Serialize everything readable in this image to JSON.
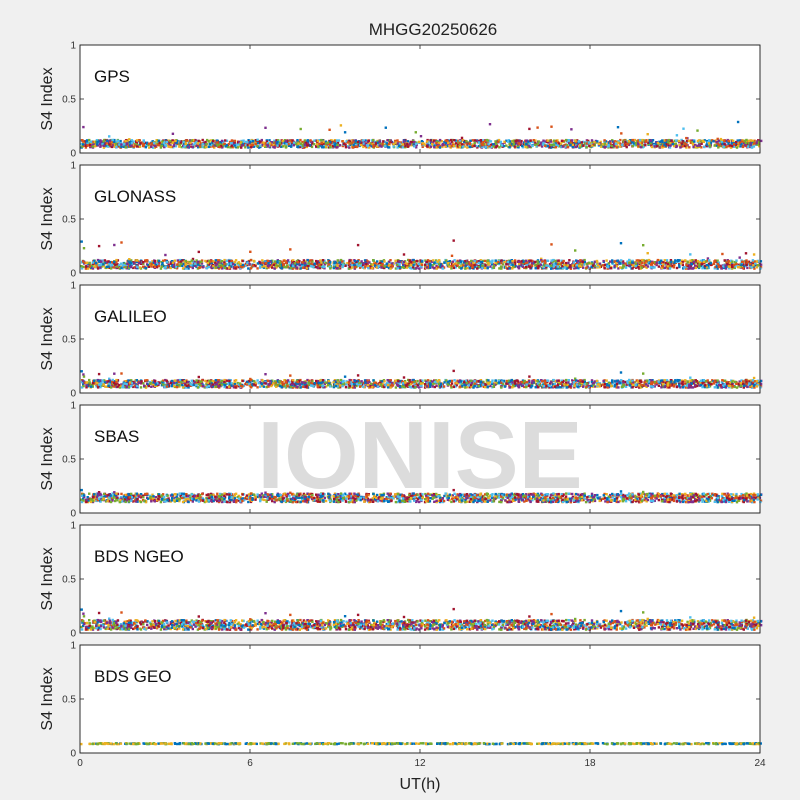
{
  "title": "MHGG20250626",
  "watermark": "IONISE",
  "xlabel": "UT(h)",
  "xticks": [
    "0",
    "6",
    "12",
    "18",
    "24"
  ],
  "chart_data": [
    {
      "type": "scatter",
      "panel_label": "GPS",
      "ylabel": "S4 Index",
      "xlim": [
        0,
        24
      ],
      "ylim": [
        0,
        1
      ],
      "yticks": [
        "0",
        "0.5",
        "1"
      ],
      "x_axis_unit": "UT hours",
      "typical_range": [
        0.05,
        0.12
      ],
      "max_approx": 0.3,
      "series_colors": [
        "#0072BD",
        "#D95319",
        "#EDB120",
        "#7E2F8E",
        "#77AC30",
        "#4DBEEE",
        "#A2142F"
      ]
    },
    {
      "type": "scatter",
      "panel_label": "GLONASS",
      "ylabel": "S4 Index",
      "xlim": [
        0,
        24
      ],
      "ylim": [
        0,
        1
      ],
      "yticks": [
        "0",
        "0.5",
        "1"
      ],
      "typical_range": [
        0.04,
        0.12
      ],
      "max_approx": 0.33,
      "series_colors": [
        "#0072BD",
        "#D95319",
        "#EDB120",
        "#7E2F8E",
        "#77AC30",
        "#4DBEEE",
        "#A2142F"
      ]
    },
    {
      "type": "scatter",
      "panel_label": "GALILEO",
      "ylabel": "S4 Index",
      "xlim": [
        0,
        24
      ],
      "ylim": [
        0,
        1
      ],
      "yticks": [
        "0",
        "0.5",
        "1"
      ],
      "typical_range": [
        0.05,
        0.12
      ],
      "max_approx": 0.22,
      "series_colors": [
        "#0072BD",
        "#D95319",
        "#EDB120",
        "#7E2F8E",
        "#77AC30",
        "#4DBEEE",
        "#A2142F"
      ]
    },
    {
      "type": "scatter",
      "panel_label": "SBAS",
      "ylabel": "S4 Index",
      "xlim": [
        0,
        24
      ],
      "ylim": [
        0,
        1
      ],
      "yticks": [
        "0",
        "0.5",
        "1"
      ],
      "typical_range": [
        0.1,
        0.18
      ],
      "max_approx": 0.22,
      "series_colors": [
        "#0072BD",
        "#D95319",
        "#EDB120",
        "#7E2F8E",
        "#77AC30",
        "#4DBEEE",
        "#A2142F"
      ]
    },
    {
      "type": "scatter",
      "panel_label": "BDS NGEO",
      "ylabel": "S4 Index",
      "xlim": [
        0,
        24
      ],
      "ylim": [
        0,
        1
      ],
      "yticks": [
        "0",
        "0.5",
        "1"
      ],
      "typical_range": [
        0.03,
        0.12
      ],
      "max_approx": 0.24,
      "series_colors": [
        "#0072BD",
        "#D95319",
        "#EDB120",
        "#7E2F8E",
        "#77AC30",
        "#4DBEEE",
        "#A2142F"
      ]
    },
    {
      "type": "scatter",
      "panel_label": "BDS GEO",
      "ylabel": "S4 Index",
      "xlim": [
        0,
        24
      ],
      "ylim": [
        0,
        1
      ],
      "yticks": [
        "0",
        "0.5",
        "1"
      ],
      "typical_range": [
        0.07,
        0.1
      ],
      "max_approx": 0.12,
      "series_colors": [
        "#0072BD",
        "#EDB120",
        "#77AC30"
      ]
    }
  ]
}
